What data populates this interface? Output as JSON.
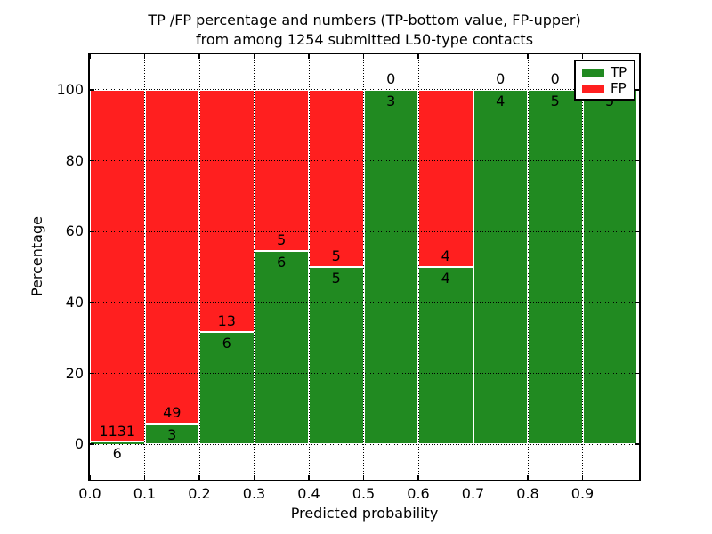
{
  "title": {
    "line1": "TP /FP percentage and numbers (TP-bottom value, FP-upper)",
    "line2": "from among 1254 submitted L50-type contacts"
  },
  "axes": {
    "xlabel": "Predicted probability",
    "ylabel": "Percentage",
    "x_ticks": [
      "0.0",
      "0.1",
      "0.2",
      "0.3",
      "0.4",
      "0.5",
      "0.6",
      "0.7",
      "0.8",
      "0.9"
    ],
    "y_ticks": [
      "0",
      "20",
      "40",
      "60",
      "80",
      "100"
    ]
  },
  "legend": {
    "position": "upper right",
    "items": [
      {
        "label": "TP",
        "color": "#218a21"
      },
      {
        "label": "FP",
        "color": "#ff1f1f"
      }
    ]
  },
  "chart_data": {
    "type": "bar",
    "stacked": true,
    "normalized": "each bin stacked to 100 percent",
    "title": "TP /FP percentage and numbers (TP-bottom value, FP-upper) from among 1254 submitted L50-type contacts",
    "xlabel": "Predicted probability",
    "ylabel": "Percentage",
    "ylim": [
      -10,
      110
    ],
    "xlim": [
      0.0,
      1.0
    ],
    "grid": true,
    "legend_position": "upper right",
    "total_contacts": 1254,
    "colors": {
      "tp": "#218a21",
      "fp": "#ff1f1f",
      "bar_edge": "#ffffff"
    },
    "bin_edges": [
      0.0,
      0.1,
      0.2,
      0.3,
      0.4,
      0.5,
      0.6,
      0.7,
      0.8,
      0.9,
      1.0
    ],
    "bins": [
      {
        "range": "0.0-0.1",
        "tp": 6,
        "fp": 1131,
        "tp_percent": 0.5
      },
      {
        "range": "0.1-0.2",
        "tp": 3,
        "fp": 49,
        "tp_percent": 5.8
      },
      {
        "range": "0.2-0.3",
        "tp": 6,
        "fp": 13,
        "tp_percent": 31.6
      },
      {
        "range": "0.3-0.4",
        "tp": 6,
        "fp": 5,
        "tp_percent": 54.5
      },
      {
        "range": "0.4-0.5",
        "tp": 5,
        "fp": 5,
        "tp_percent": 50.0
      },
      {
        "range": "0.5-0.6",
        "tp": 3,
        "fp": 0,
        "tp_percent": 100.0
      },
      {
        "range": "0.6-0.7",
        "tp": 4,
        "fp": 4,
        "tp_percent": 50.0
      },
      {
        "range": "0.7-0.8",
        "tp": 4,
        "fp": 0,
        "tp_percent": 100.0
      },
      {
        "range": "0.8-0.9",
        "tp": 5,
        "fp": 0,
        "tp_percent": 100.0
      },
      {
        "range": "0.9-1.0",
        "tp": 5,
        "fp": 0,
        "tp_percent": 100.0
      }
    ]
  }
}
